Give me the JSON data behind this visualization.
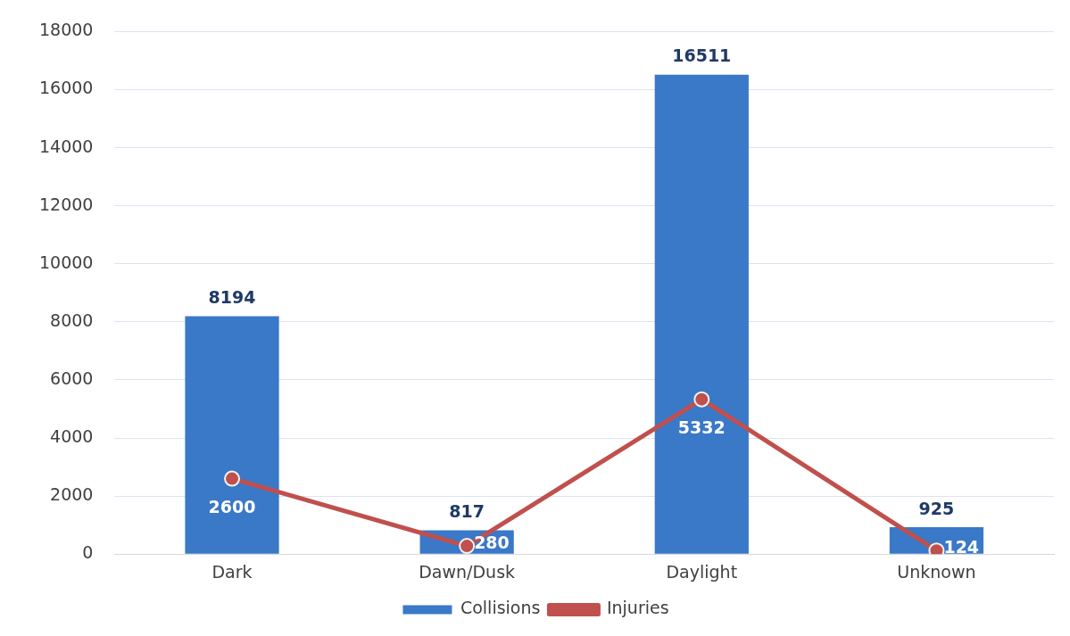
{
  "chart_data": {
    "type": "bar",
    "categories": [
      "Dark",
      "Dawn/Dusk",
      "Daylight",
      "Unknown"
    ],
    "series": [
      {
        "name": "Collisions",
        "color": "#3a78c8",
        "values": [
          8194,
          817,
          16511,
          925
        ]
      },
      {
        "name": "Injuries",
        "type": "line",
        "color": "#c0504d",
        "values": [
          2600,
          280,
          5332,
          124
        ],
        "marker": "circle"
      }
    ],
    "ylim": [
      0,
      18000
    ],
    "yticks": [
      0,
      2000,
      4000,
      6000,
      8000,
      10000,
      12000,
      14000,
      16000,
      18000
    ],
    "grid": "y",
    "legend": "bottom",
    "data_labels": true
  }
}
